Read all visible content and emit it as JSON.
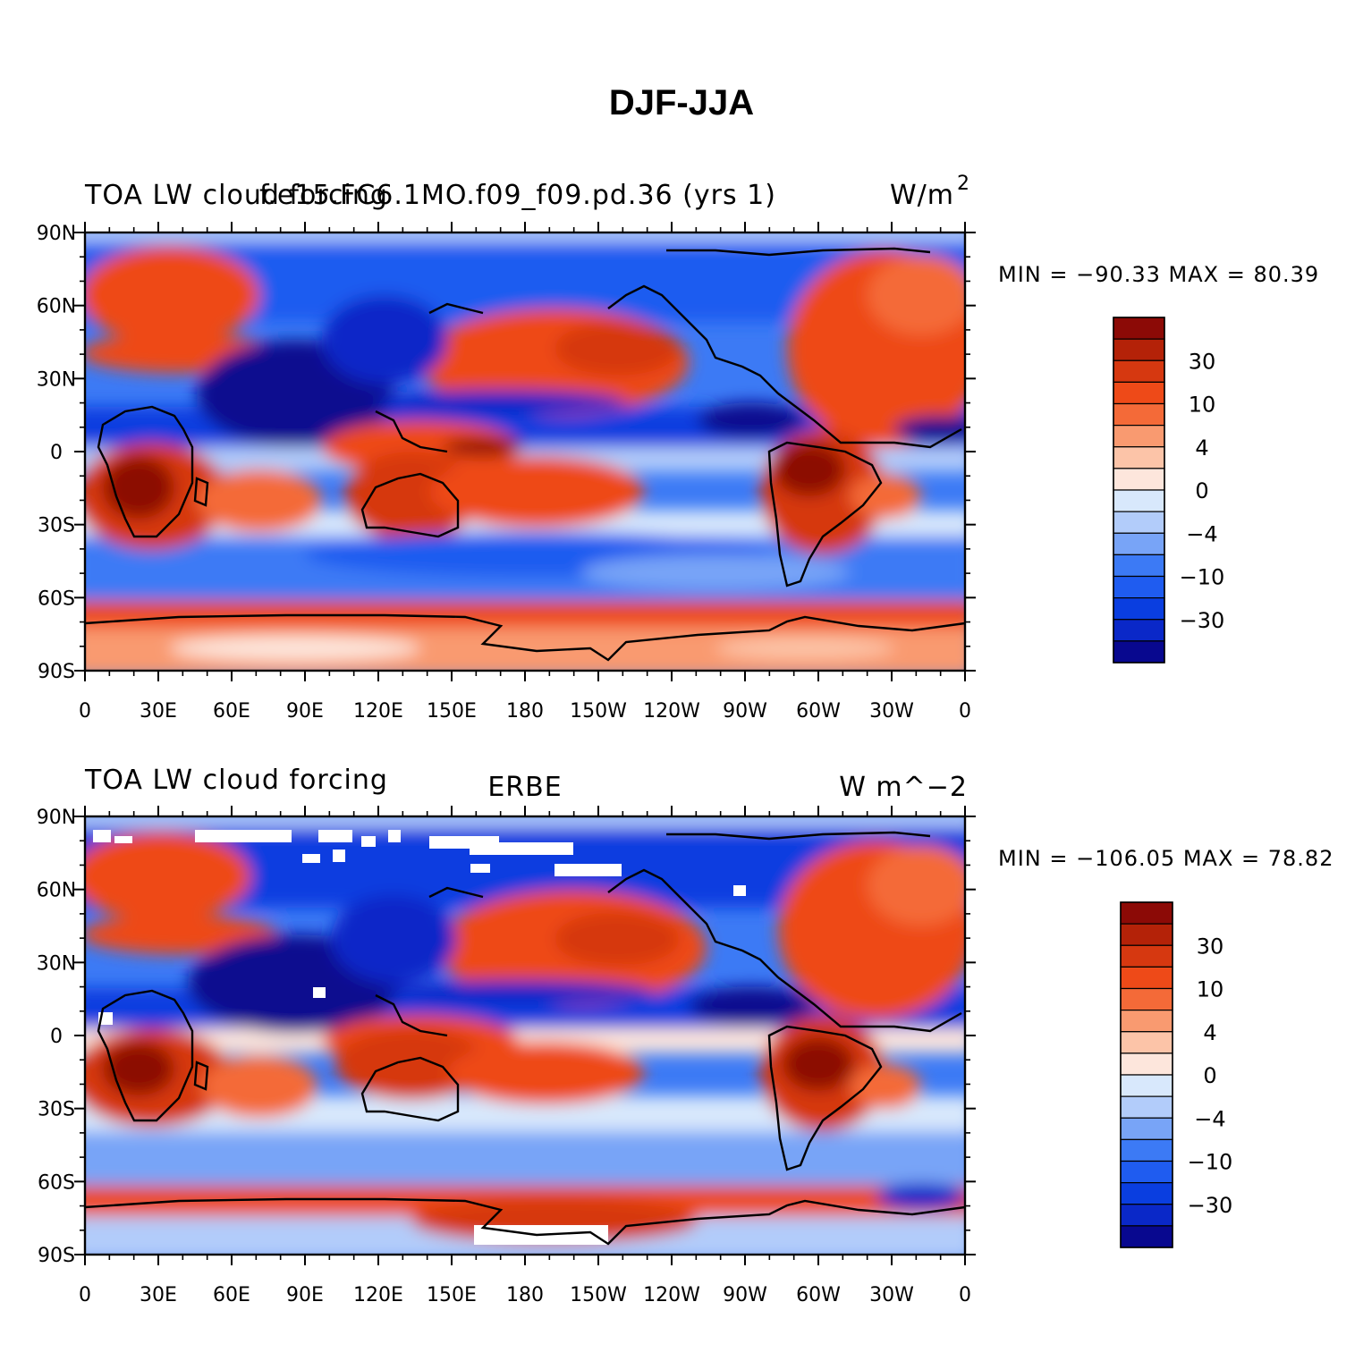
{
  "figure": {
    "title": "DJF-JJA",
    "contour_colors": [
      "#08088f",
      "#0a28c8",
      "#0a3ee0",
      "#1f5cf0",
      "#3c7af5",
      "#78a4f7",
      "#b2ccfa",
      "#d8e8fc",
      "#fde6dc",
      "#fcc4a8",
      "#f99a70",
      "#f46a38",
      "#ee4a18",
      "#d63810",
      "#b42208",
      "#8c0a06"
    ],
    "colorbar_labels": [
      "30",
      "10",
      "4",
      "0",
      "−4",
      "−10",
      "−30"
    ],
    "lat_labels": [
      "90N",
      "60N",
      "30N",
      "0",
      "30S",
      "60S",
      "90S"
    ],
    "lon_labels": [
      "0",
      "30E",
      "60E",
      "90E",
      "120E",
      "150E",
      "180",
      "150W",
      "120W",
      "90W",
      "60W",
      "30W",
      "0"
    ]
  },
  "panels": [
    {
      "left_title": "TOA LW cloud forcing",
      "center_title": "f.e15.FC6.1MO.f09_f09.pd.36 (yrs 1)",
      "units": "W/m",
      "units_sup": "2",
      "min_max": "MIN = −90.33  MAX =  80.39"
    },
    {
      "left_title": "TOA LW cloud forcing",
      "center_title": "ERBE",
      "units": "W m^−2",
      "units_sup": "",
      "min_max": "MIN = −106.05  MAX =  78.82"
    }
  ]
}
